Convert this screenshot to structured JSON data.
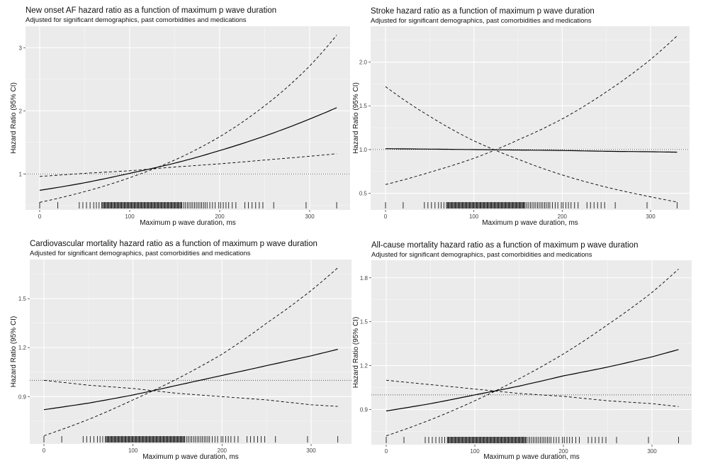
{
  "rug_x": [
    0,
    20,
    44,
    48,
    52,
    56,
    60,
    63,
    66,
    69,
    70,
    71,
    72,
    73,
    74,
    75,
    76,
    77,
    78,
    79,
    80,
    81,
    82,
    83,
    84,
    85,
    86,
    87,
    88,
    89,
    90,
    91,
    92,
    93,
    94,
    95,
    96,
    97,
    98,
    99,
    100,
    101,
    102,
    103,
    104,
    105,
    106,
    107,
    108,
    109,
    110,
    111,
    112,
    113,
    114,
    115,
    116,
    117,
    118,
    119,
    120,
    121,
    122,
    123,
    124,
    125,
    126,
    127,
    128,
    129,
    130,
    131,
    132,
    133,
    134,
    135,
    136,
    137,
    138,
    139,
    140,
    141,
    142,
    143,
    144,
    145,
    146,
    147,
    148,
    149,
    150,
    151,
    152,
    153,
    154,
    155,
    156,
    157,
    158,
    160,
    162,
    164,
    166,
    168,
    170,
    172,
    174,
    176,
    178,
    180,
    182,
    184,
    186,
    189,
    192,
    195,
    199,
    201,
    204,
    207,
    210,
    214,
    218,
    228,
    232,
    236,
    240,
    244,
    248,
    260,
    296,
    330
  ],
  "chart_data": [
    {
      "type": "line",
      "title": "New onset AF hazard ratio as a function of maximum p wave duration",
      "subtitle": "Adjusted for significant demographics, past comorbidities and medications",
      "xlabel": "Maximum p wave duration, ms",
      "ylabel": "Hazard Ratio (95% CI)",
      "xlim": [
        -5,
        345
      ],
      "ylim": [
        0.43,
        3.34
      ],
      "xticks": [
        0,
        100,
        200,
        300
      ],
      "xtick_labels": [
        "0",
        "100",
        "200",
        "300"
      ],
      "yticks": [
        1,
        2,
        3
      ],
      "ytick_labels": [
        "1",
        "2",
        "3"
      ],
      "yminor": [
        0.5,
        1.5,
        2.5
      ],
      "reference_line": 1,
      "x": [
        0,
        50,
        100,
        150,
        200,
        250,
        300,
        330
      ],
      "series": [
        {
          "name": "Hazard ratio",
          "style": "solid",
          "values": [
            0.74,
            0.86,
            1.01,
            1.17,
            1.37,
            1.6,
            1.87,
            2.05
          ]
        },
        {
          "name": "95% CI bound",
          "style": "dashed",
          "values": [
            0.55,
            0.72,
            0.94,
            1.22,
            1.59,
            2.08,
            2.71,
            3.2
          ]
        },
        {
          "name": "95% CI bound",
          "style": "dashed",
          "values": [
            0.96,
            1.01,
            1.05,
            1.11,
            1.16,
            1.22,
            1.28,
            1.32
          ]
        }
      ]
    },
    {
      "type": "line",
      "title": "Stroke hazard ratio as a function of maximum p wave duration",
      "subtitle": "Adjusted for significant demographics, past comorbidities and medications",
      "xlabel": "Maximum p wave duration, ms",
      "ylabel": "Hazard Ratio (95% CI)",
      "xlim": [
        -5,
        345
      ],
      "ylim": [
        0.31,
        2.41
      ],
      "xticks": [
        0,
        100,
        200,
        300
      ],
      "xtick_labels": [
        "0",
        "100",
        "200",
        "300"
      ],
      "yticks": [
        0.5,
        1.0,
        1.5,
        2.0
      ],
      "ytick_labels": [
        "0.5",
        "1.0",
        "1.5",
        "2.0"
      ],
      "yminor": [
        0.75,
        1.25,
        1.75,
        2.25
      ],
      "reference_line": 1,
      "x": [
        0,
        50,
        100,
        150,
        200,
        250,
        300,
        330
      ],
      "series": [
        {
          "name": "Hazard ratio",
          "style": "solid",
          "values": [
            1.01,
            1.005,
            1.0,
            0.995,
            0.99,
            0.98,
            0.975,
            0.97
          ]
        },
        {
          "name": "95% CI bound",
          "style": "dashed",
          "values": [
            1.72,
            1.38,
            1.1,
            0.89,
            0.71,
            0.57,
            0.46,
            0.4
          ]
        },
        {
          "name": "95% CI bound",
          "style": "dashed",
          "values": [
            0.6,
            0.74,
            0.9,
            1.11,
            1.35,
            1.66,
            2.03,
            2.3
          ]
        }
      ]
    },
    {
      "type": "line",
      "title": "Cardiovascular  mortality hazard ratio as a function of maximum p wave duration",
      "subtitle": "Adjusted for significant demographics, past comorbidities and medications",
      "xlabel": "Maximum p wave duration, ms",
      "ylabel": "Hazard Ratio (95% CI)",
      "xlim": [
        -5,
        345
      ],
      "ylim": [
        0.61,
        1.74
      ],
      "xticks": [
        0,
        100,
        200,
        300
      ],
      "xtick_labels": [
        "0",
        "100",
        "200",
        "300"
      ],
      "yticks": [
        0.9,
        1.2,
        1.5
      ],
      "ytick_labels": [
        "0.9",
        "1.2",
        "1.5"
      ],
      "yminor": [
        0.75,
        1.05,
        1.35,
        1.65
      ],
      "reference_line": 1,
      "x": [
        0,
        50,
        100,
        150,
        200,
        250,
        300,
        330
      ],
      "series": [
        {
          "name": "Hazard ratio",
          "style": "solid",
          "values": [
            0.82,
            0.86,
            0.91,
            0.97,
            1.03,
            1.09,
            1.15,
            1.19
          ]
        },
        {
          "name": "95% CI bound",
          "style": "dashed",
          "values": [
            0.66,
            0.76,
            0.88,
            1.01,
            1.16,
            1.35,
            1.55,
            1.69
          ]
        },
        {
          "name": "95% CI bound",
          "style": "dashed",
          "values": [
            1.0,
            0.97,
            0.95,
            0.92,
            0.9,
            0.88,
            0.85,
            0.84
          ]
        }
      ]
    },
    {
      "type": "line",
      "title": "All-cause mortality hazard ratio as a function of maximum p wave duration",
      "subtitle": "Adjusted for significant demographics, past comorbidities and medications",
      "xlabel": "Maximum p wave duration, ms",
      "ylabel": "Hazard Ratio (95% CI)",
      "xlim": [
        -5,
        345
      ],
      "ylim": [
        0.66,
        1.92
      ],
      "xticks": [
        0,
        100,
        200,
        300
      ],
      "xtick_labels": [
        "0",
        "100",
        "200",
        "300"
      ],
      "yticks": [
        0.9,
        1.2,
        1.5,
        1.8
      ],
      "ytick_labels": [
        "0.9",
        "1.2",
        "1.5",
        "1.8"
      ],
      "yminor": [
        0.75,
        1.05,
        1.35,
        1.65
      ],
      "reference_line": 1,
      "x": [
        0,
        50,
        100,
        150,
        200,
        250,
        300,
        330
      ],
      "series": [
        {
          "name": "Hazard ratio",
          "style": "solid",
          "values": [
            0.89,
            0.94,
            1.0,
            1.06,
            1.13,
            1.19,
            1.26,
            1.31
          ]
        },
        {
          "name": "95% CI bound",
          "style": "dashed",
          "values": [
            0.72,
            0.83,
            0.96,
            1.11,
            1.28,
            1.48,
            1.7,
            1.86
          ]
        },
        {
          "name": "95% CI bound",
          "style": "dashed",
          "values": [
            1.1,
            1.07,
            1.04,
            1.01,
            0.99,
            0.96,
            0.94,
            0.92
          ]
        }
      ]
    }
  ]
}
